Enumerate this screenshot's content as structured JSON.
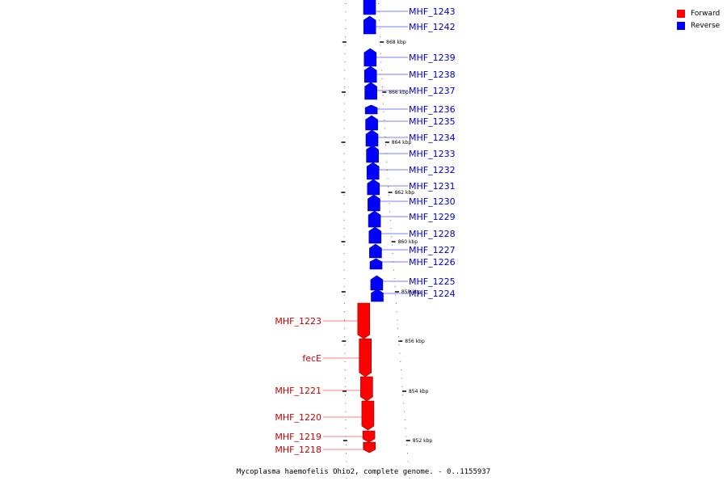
{
  "caption": "Mycoplasma haemofelis Ohio2, complete genome. - 0..1155937",
  "legend": [
    {
      "label": "Forward",
      "color": "#ff0000"
    },
    {
      "label": "Reverse",
      "color": "#0000ff"
    }
  ],
  "colors": {
    "forward": "#ff0000",
    "reverse": "#0000ff",
    "forward_label": "#cc0000",
    "reverse_label": "#0000cc",
    "backbone": "#888888"
  },
  "ticks": [
    "868 kbp",
    "866 kbp",
    "864 kbp",
    "862 kbp",
    "860 kbp",
    "858 kbp",
    "856 kbp",
    "854 kbp",
    "852 kbp"
  ],
  "genes": [
    {
      "name": "MHF_1243",
      "strand": "reverse"
    },
    {
      "name": "MHF_1242",
      "strand": "reverse"
    },
    {
      "name": "MHF_1239",
      "strand": "reverse"
    },
    {
      "name": "MHF_1238",
      "strand": "reverse"
    },
    {
      "name": "MHF_1237",
      "strand": "reverse"
    },
    {
      "name": "MHF_1236",
      "strand": "reverse"
    },
    {
      "name": "MHF_1235",
      "strand": "reverse"
    },
    {
      "name": "MHF_1234",
      "strand": "reverse"
    },
    {
      "name": "MHF_1233",
      "strand": "reverse"
    },
    {
      "name": "MHF_1232",
      "strand": "reverse"
    },
    {
      "name": "MHF_1231",
      "strand": "reverse"
    },
    {
      "name": "MHF_1230",
      "strand": "reverse"
    },
    {
      "name": "MHF_1229",
      "strand": "reverse"
    },
    {
      "name": "MHF_1228",
      "strand": "reverse"
    },
    {
      "name": "MHF_1227",
      "strand": "reverse"
    },
    {
      "name": "MHF_1226",
      "strand": "reverse"
    },
    {
      "name": "MHF_1225",
      "strand": "reverse"
    },
    {
      "name": "MHF_1224",
      "strand": "reverse"
    },
    {
      "name": "MHF_1223",
      "strand": "forward"
    },
    {
      "name": "fecE",
      "strand": "forward"
    },
    {
      "name": "MHF_1221",
      "strand": "forward"
    },
    {
      "name": "MHF_1220",
      "strand": "forward"
    },
    {
      "name": "MHF_1219",
      "strand": "forward"
    },
    {
      "name": "MHF_1218",
      "strand": "forward"
    }
  ]
}
